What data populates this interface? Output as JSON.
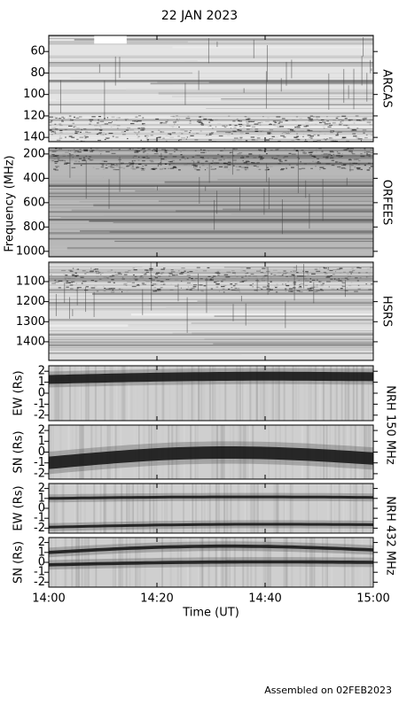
{
  "title": "22 JAN 2023",
  "footer": "Assembled on 02FEB2023",
  "x_axis": {
    "label": "Time (UT)",
    "xlim": [
      0,
      60
    ],
    "xticks": [
      {
        "value": 0,
        "label": "14:00"
      },
      {
        "value": 20,
        "label": "14:20"
      },
      {
        "value": 40,
        "label": "14:40"
      },
      {
        "value": 60,
        "label": "15:00"
      }
    ]
  },
  "frequency_label": "Frequency (MHz)",
  "chart_data": [
    {
      "type": "spectrogram",
      "name": "ARCAS",
      "ylim": [
        144,
        45
      ],
      "yticks": [
        60,
        80,
        100,
        120,
        140
      ]
    },
    {
      "type": "spectrogram",
      "name": "ORFEES",
      "ylim": [
        1045,
        150
      ],
      "yticks": [
        200,
        400,
        600,
        800,
        1000
      ]
    },
    {
      "type": "spectrogram",
      "name": "HSRS",
      "ylim": [
        1493,
        1003
      ],
      "yticks": [
        1100,
        1200,
        1300,
        1400
      ]
    },
    {
      "type": "heliogram",
      "y_label": "EW (Rs)",
      "ylim": [
        -2.5,
        2.5
      ],
      "yticks": [
        -2,
        -1,
        0,
        1,
        2
      ]
    },
    {
      "type": "heliogram",
      "y_label": "SN (Rs)",
      "ylim": [
        -2.5,
        2.5
      ],
      "yticks": [
        -2,
        -1,
        0,
        1,
        2
      ]
    },
    {
      "type": "heliogram",
      "y_label": "EW (Rs)",
      "ylim": [
        -2.5,
        2.5
      ],
      "yticks": [
        -2,
        -1,
        0,
        1,
        2
      ]
    },
    {
      "type": "heliogram",
      "y_label": "SN (Rs)",
      "ylim": [
        -2.5,
        2.5
      ],
      "yticks": [
        -2,
        -1,
        0,
        1,
        2
      ]
    }
  ],
  "instrument_labels": [
    "NRH 150 MHz",
    "NRH 432 MHz"
  ]
}
